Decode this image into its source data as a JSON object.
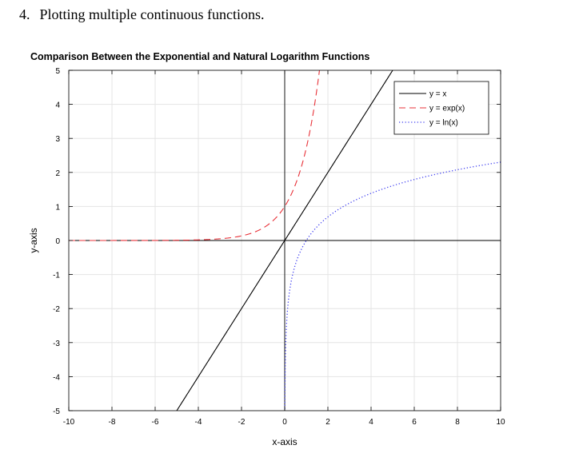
{
  "document": {
    "problem_number": "4.",
    "problem_text": "Plotting multiple continuous functions."
  },
  "chart_data": {
    "type": "line",
    "title": "Comparison Between the Exponential and Natural Logarithm Functions",
    "xlabel": "x-axis",
    "ylabel": "y-axis",
    "xlim": [
      -10,
      10
    ],
    "ylim": [
      -5,
      5
    ],
    "xticks": [
      -10,
      -8,
      -6,
      -4,
      -2,
      0,
      2,
      4,
      6,
      8,
      10
    ],
    "yticks": [
      -5,
      -4,
      -3,
      -2,
      -1,
      0,
      1,
      2,
      3,
      4,
      5
    ],
    "grid": true,
    "reference_lines": {
      "x": 0,
      "y": 0
    },
    "legend_position": "top-right",
    "series": [
      {
        "name": "y = x",
        "function": "x",
        "style": "solid",
        "color": "#000000",
        "domain": [
          -10,
          10
        ]
      },
      {
        "name": "y = exp(x)",
        "function": "exp",
        "style": "dashed",
        "color": "#e8333a",
        "domain": [
          -10,
          10
        ]
      },
      {
        "name": "y = ln(x)",
        "function": "ln",
        "style": "dotted",
        "color": "#3d3df0",
        "domain": [
          0.001,
          10
        ]
      }
    ]
  }
}
